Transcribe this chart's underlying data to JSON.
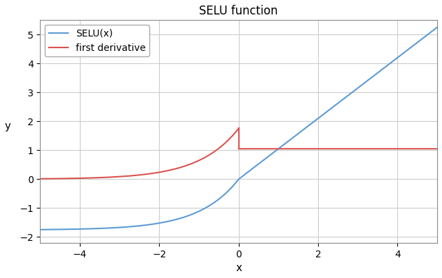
{
  "title": "SELU function",
  "xlabel": "x",
  "ylabel": "y",
  "alpha": 1.67326324,
  "gamma": 1.05070098,
  "x_min": -5,
  "x_max": 5,
  "ylim": [
    -2.2,
    5.5
  ],
  "selu_color": "#5b9bd5",
  "deriv_color": "#d9534f",
  "line_width": 1.5,
  "legend_labels": [
    "SELU(x)",
    "first derivative"
  ],
  "grid_color": "#cccccc",
  "background_color": "#ffffff",
  "title_fontsize": 12,
  "label_fontsize": 11,
  "tick_fontsize": 10,
  "legend_fontsize": 10
}
